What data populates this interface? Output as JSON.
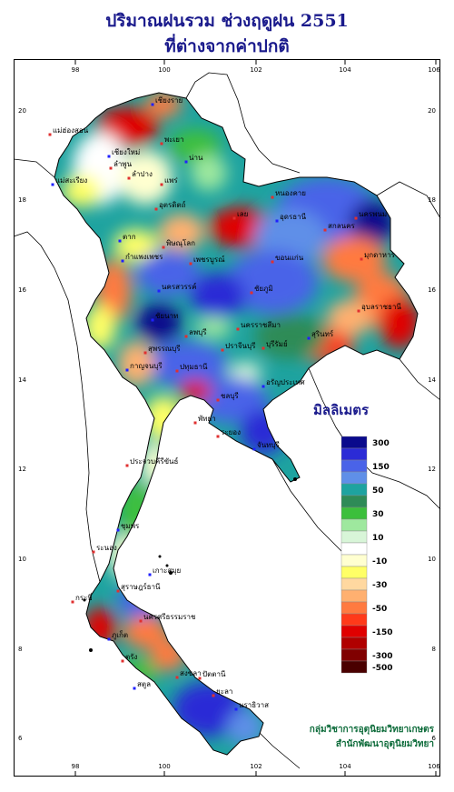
{
  "title_line1": "ปริมาณฝนรวม ช่วงฤดูฝน 2551",
  "title_line2": "ที่ต่างจากค่าปกติ",
  "axes": {
    "lon_ticks": [
      "98",
      "100",
      "102",
      "104",
      "106"
    ],
    "lat_ticks": [
      "20",
      "18",
      "16",
      "14",
      "12",
      "10",
      "8",
      "6"
    ]
  },
  "legend": {
    "title": "มิลลิเมตร",
    "entries": [
      {
        "label": "300",
        "color": "#0a0a8c"
      },
      {
        "label": "",
        "color": "#2b2bd6"
      },
      {
        "label": "150",
        "color": "#4a63e8"
      },
      {
        "label": "",
        "color": "#5f8fe8"
      },
      {
        "label": "50",
        "color": "#1ea3a0"
      },
      {
        "label": "",
        "color": "#2e8b57"
      },
      {
        "label": "30",
        "color": "#3cbf3c"
      },
      {
        "label": "",
        "color": "#9ee89e"
      },
      {
        "label": "10",
        "color": "#d8f5d8"
      },
      {
        "label": "",
        "color": "#ffffff"
      },
      {
        "label": "-10",
        "color": "#ffffd0"
      },
      {
        "label": "",
        "color": "#ffff66"
      },
      {
        "label": "-30",
        "color": "#ffd8a0"
      },
      {
        "label": "",
        "color": "#ffb070"
      },
      {
        "label": "-50",
        "color": "#ff7a40"
      },
      {
        "label": "",
        "color": "#ff3a1a"
      },
      {
        "label": "-150",
        "color": "#e00000"
      },
      {
        "label": "",
        "color": "#b00000"
      },
      {
        "label": "-300",
        "color": "#800000"
      },
      {
        "label": "-500",
        "color": "#4a0000"
      }
    ]
  },
  "places": [
    "เชียงราย",
    "แม่ฮ่องสอน",
    "พะเยา",
    "เชียงใหม่",
    "ลำพูน",
    "ลำปาง",
    "น่าน",
    "แพร่",
    "อุตรดิตถ์",
    "แม่สะเรียง",
    "เลย",
    "หนองคาย",
    "อุดรธานี",
    "นครพนม",
    "สกลนคร",
    "ตาก",
    "พิษณุโลก",
    "มุกดาหาร",
    "กำแพงเพชร",
    "เพชรบูรณ์",
    "ขอนแก่น",
    "นครสวรรค์",
    "ชัยภูมิ",
    "อุบลราชธานี",
    "ชัยนาท",
    "ลพบุรี",
    "นครราชสีมา",
    "สุรินทร์",
    "สุพรรณบุรี",
    "ปราจีนบุรี",
    "กาญจนบุรี",
    "ปทุมธานี",
    "บุรีรัมย์",
    "อรัญประเทศ",
    "ชลบุรี",
    "ระยอง",
    "จันทบุรี",
    "พัทยา",
    "ประจวบคีรีขันธ์",
    "ชุมพร",
    "ระนอง",
    "สุราษฎร์ธานี",
    "เกาะสมุย",
    "กระบี่",
    "นครศรีธรรมราช",
    "ภูเก็ต",
    "ตรัง",
    "สงขลา",
    "สตูล",
    "ยะลา",
    "ปัตตานี",
    "นราธิวาส"
  ],
  "credit_line1": "กลุ่มวิชาการอุตุนิยมวิทยาเกษตร",
  "credit_line2": "สำนักพัฒนาอุตุนิยมวิทยา"
}
